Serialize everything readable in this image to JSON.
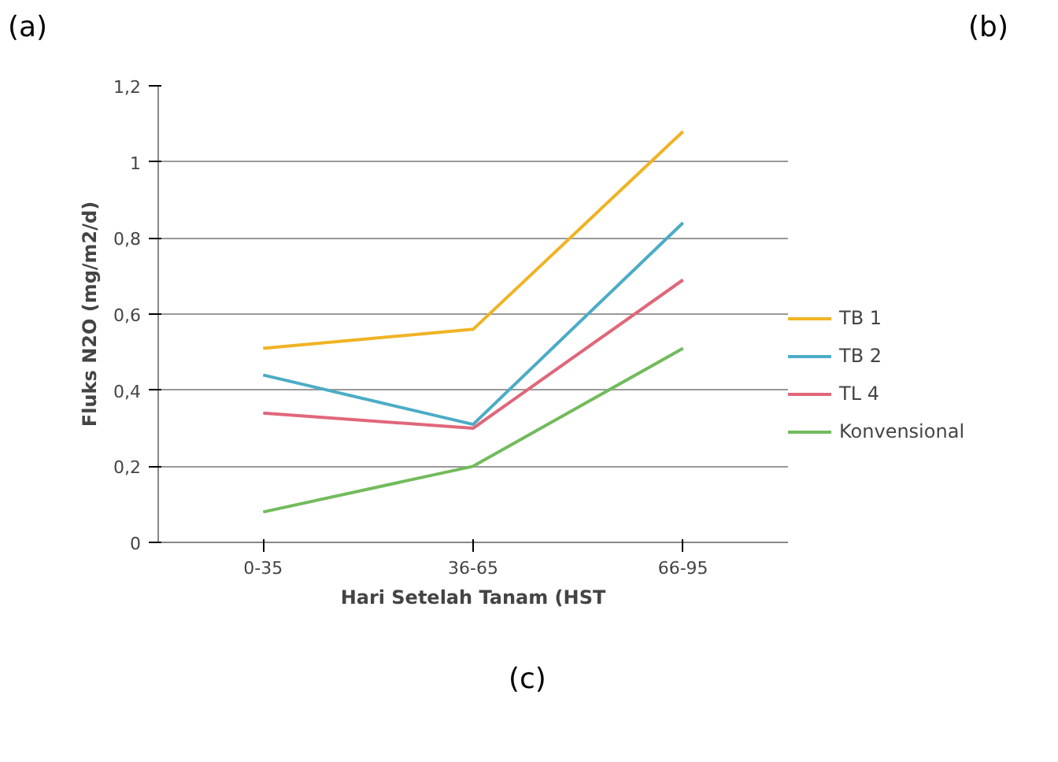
{
  "chart_data": {
    "type": "line",
    "xlabel": "Hari Setelah Tanam (HST",
    "ylabel": "Fluks N2O (mg/m2/d)",
    "categories": [
      "0-35",
      "36-65",
      "66-95"
    ],
    "series": [
      {
        "name": "TB 1",
        "color": "#f0b323",
        "values": [
          0.51,
          0.56,
          1.08
        ]
      },
      {
        "name": "TB 2",
        "color": "#4bacc6",
        "values": [
          0.44,
          0.31,
          0.84
        ]
      },
      {
        "name": "TL 4",
        "color": "#e0677a",
        "values": [
          0.34,
          0.3,
          0.69
        ]
      },
      {
        "name": "Konvensional",
        "color": "#72bb5c",
        "values": [
          0.08,
          0.2,
          0.51
        ]
      }
    ],
    "ylim": [
      0,
      1.2
    ],
    "yticks": [
      0,
      {
        "value": 0.2,
        "label": "0,2"
      },
      {
        "value": 0.4,
        "label": "0,4"
      },
      {
        "value": 0.6,
        "label": "0,6"
      },
      {
        "value": 0.8,
        "label": "0,8"
      },
      1,
      {
        "value": 1.2,
        "label": "1,2"
      }
    ],
    "grid": "y",
    "legend": "right",
    "marker": "none",
    "line_style": "solid",
    "annotations": [
      "(a)",
      "(b)",
      "(c)"
    ]
  }
}
